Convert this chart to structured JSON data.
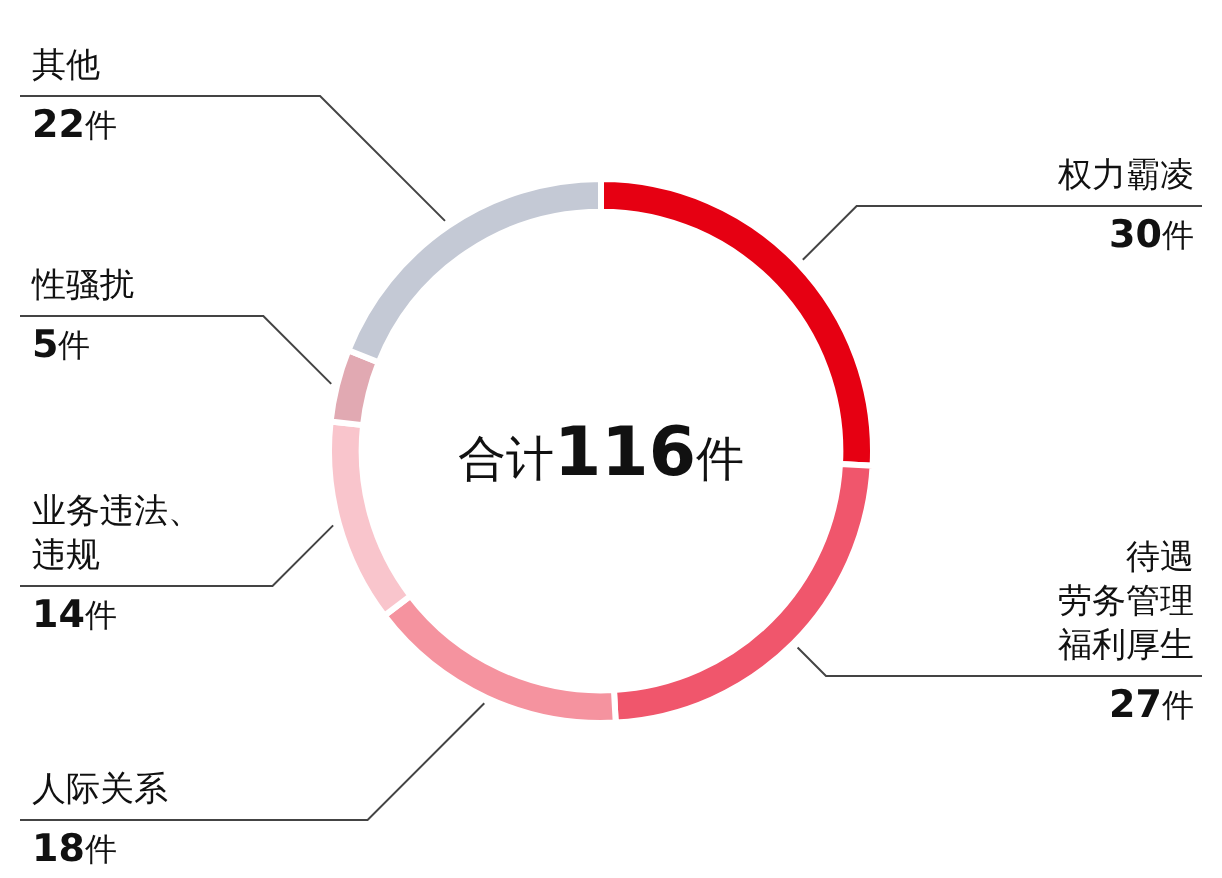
{
  "chart_data": {
    "type": "donut",
    "categories": [
      "权力霸凌",
      "待遇劳务管理福利厚生",
      "人际关系",
      "业务违法、违规",
      "性骚扰",
      "其他"
    ],
    "values": [
      30,
      27,
      18,
      14,
      5,
      22
    ],
    "value_labels": [
      "30件",
      "27件",
      "18件",
      "14件",
      "5件",
      "22件"
    ],
    "colors": [
      "#e60012",
      "#f0566c",
      "#f5939f",
      "#f9c5cc",
      "#e1a9b2",
      "#c4c9d5"
    ],
    "annotations": [
      "合计116件"
    ],
    "legend": false
  }
}
